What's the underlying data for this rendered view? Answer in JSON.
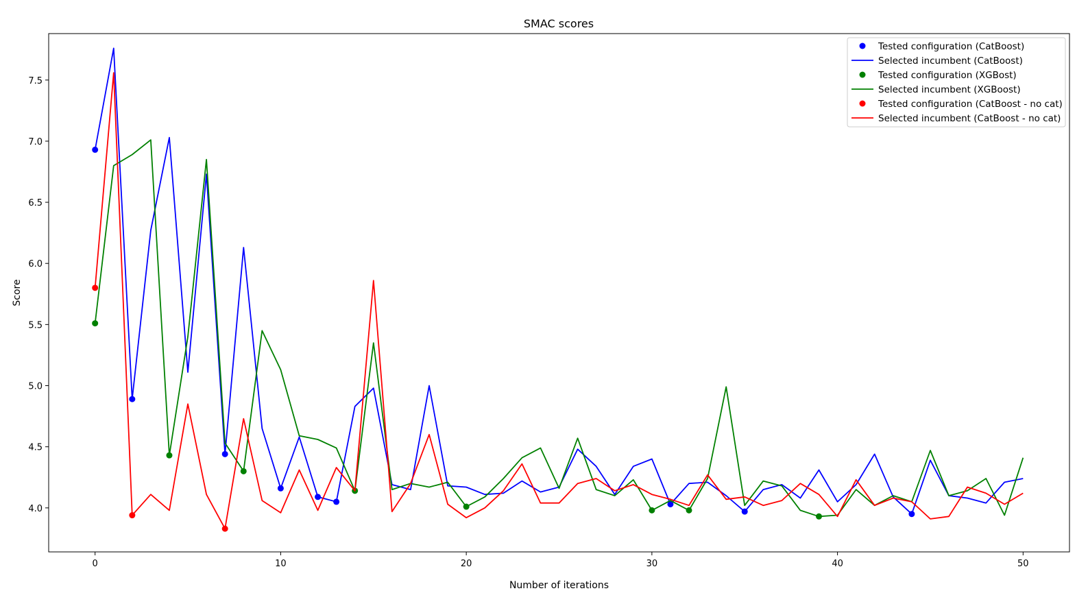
{
  "chart_data": {
    "type": "line",
    "title": "SMAC scores",
    "xlabel": "Number of iterations",
    "ylabel": "Score",
    "xlim": [
      -2.5,
      52.5
    ],
    "ylim": [
      3.64,
      7.88
    ],
    "xticks": [
      0,
      10,
      20,
      30,
      40,
      50
    ],
    "yticks": [
      4.0,
      4.5,
      5.0,
      5.5,
      6.0,
      6.5,
      7.0,
      7.5
    ],
    "ytick_labels": [
      "4.0",
      "4.5",
      "5.0",
      "5.5",
      "6.0",
      "6.5",
      "7.0",
      "7.5"
    ],
    "xtick_labels": [
      "0",
      "10",
      "20",
      "30",
      "40",
      "50"
    ],
    "grid": false,
    "legend_position": "top-right",
    "legend": [
      {
        "label": "Tested configuration (CatBoost)",
        "kind": "marker",
        "color": "#0000ff"
      },
      {
        "label": "Selected incumbent (CatBoost)",
        "kind": "line",
        "color": "#0000ff"
      },
      {
        "label": "Tested configuration (XGBost)",
        "kind": "marker",
        "color": "#008000"
      },
      {
        "label": "Selected incumbent (XGBoost)",
        "kind": "line",
        "color": "#008000"
      },
      {
        "label": "Tested configuration (CatBoost - no cat)",
        "kind": "marker",
        "color": "#ff0000"
      },
      {
        "label": "Selected incumbent (CatBoost - no cat)",
        "kind": "line",
        "color": "#ff0000"
      }
    ],
    "series": [
      {
        "key": "catboost",
        "color": "#0000ff",
        "line": [
          6.93,
          7.76,
          4.89,
          6.27,
          7.03,
          5.11,
          6.73,
          4.44,
          6.13,
          4.65,
          4.16,
          4.58,
          4.09,
          4.05,
          4.83,
          4.98,
          4.19,
          4.15,
          5.0,
          4.18,
          4.17,
          4.11,
          4.12,
          4.22,
          4.13,
          4.17,
          4.48,
          4.34,
          4.11,
          4.34,
          4.4,
          4.03,
          4.2,
          4.21,
          4.1,
          3.97,
          4.15,
          4.19,
          4.08,
          4.31,
          4.05,
          4.19,
          4.44,
          4.09,
          3.95,
          4.39,
          4.1,
          4.08,
          4.04,
          4.21,
          4.24
        ],
        "markers_x": [
          0,
          2,
          7,
          10,
          12,
          13,
          31,
          35,
          44
        ],
        "markers_y": [
          6.93,
          4.89,
          4.44,
          4.16,
          4.09,
          4.05,
          4.03,
          3.97,
          3.95
        ]
      },
      {
        "key": "xgboost",
        "color": "#008000",
        "line": [
          5.51,
          6.8,
          6.89,
          7.01,
          4.43,
          5.4,
          6.85,
          4.53,
          4.3,
          5.45,
          5.13,
          4.59,
          4.56,
          4.49,
          4.14,
          5.35,
          4.15,
          4.2,
          4.17,
          4.21,
          4.01,
          4.09,
          4.24,
          4.41,
          4.49,
          4.16,
          4.57,
          4.15,
          4.1,
          4.23,
          3.98,
          4.06,
          3.98,
          4.24,
          4.99,
          4.02,
          4.22,
          4.18,
          3.98,
          3.93,
          3.94,
          4.15,
          4.02,
          4.1,
          4.05,
          4.47,
          4.1,
          4.14,
          4.24,
          3.94,
          4.41
        ],
        "markers_x": [
          0,
          4,
          8,
          14,
          20,
          30,
          32,
          39
        ],
        "markers_y": [
          5.51,
          4.43,
          4.3,
          4.14,
          4.01,
          3.98,
          3.98,
          3.93
        ]
      },
      {
        "key": "catboost-nocat",
        "color": "#ff0000",
        "line": [
          5.8,
          7.56,
          3.94,
          4.11,
          3.98,
          4.85,
          4.11,
          3.83,
          4.73,
          4.06,
          3.96,
          4.31,
          3.98,
          4.33,
          4.14,
          5.86,
          3.97,
          4.2,
          4.6,
          4.03,
          3.92,
          4.0,
          4.14,
          4.36,
          4.04,
          4.04,
          4.2,
          4.24,
          4.14,
          4.19,
          4.11,
          4.07,
          4.02,
          4.27,
          4.07,
          4.09,
          4.02,
          4.06,
          4.2,
          4.11,
          3.93,
          4.23,
          4.02,
          4.08,
          4.05,
          3.91,
          3.93,
          4.17,
          4.12,
          4.03,
          4.12
        ],
        "markers_x": [
          0,
          2,
          7
        ],
        "markers_y": [
          5.8,
          3.94,
          3.83
        ]
      }
    ]
  }
}
